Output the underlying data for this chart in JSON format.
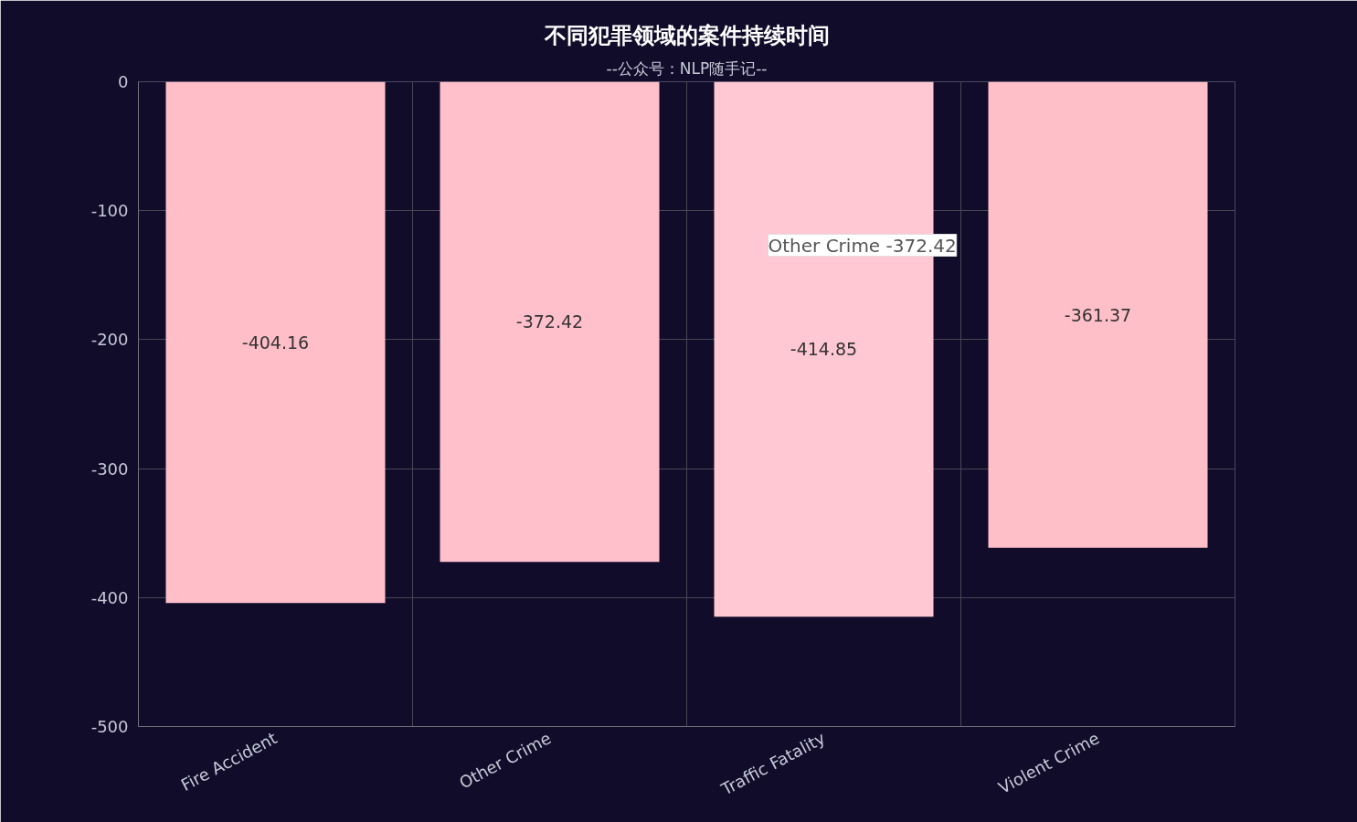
{
  "chart_data": {
    "type": "bar",
    "title": "不同犯罪领域的案件持续时间",
    "subtitle": "--公众号：NLP随手记--",
    "categories": [
      "Fire Accident",
      "Other Crime",
      "Traffic Fatality",
      "Violent Crime"
    ],
    "values": [
      -404.16,
      -372.42,
      -414.85,
      -361.37
    ],
    "colors": [
      "#ffbec8",
      "#ffc0cb",
      "#ffc8d3",
      "#ffbfc8"
    ],
    "ylim": [
      -500,
      0
    ],
    "yticks": [
      0,
      -100,
      -200,
      -300,
      -400,
      -500
    ],
    "grid": true,
    "data_labels": true,
    "annotations": [
      "Other Crime -372.42"
    ]
  }
}
